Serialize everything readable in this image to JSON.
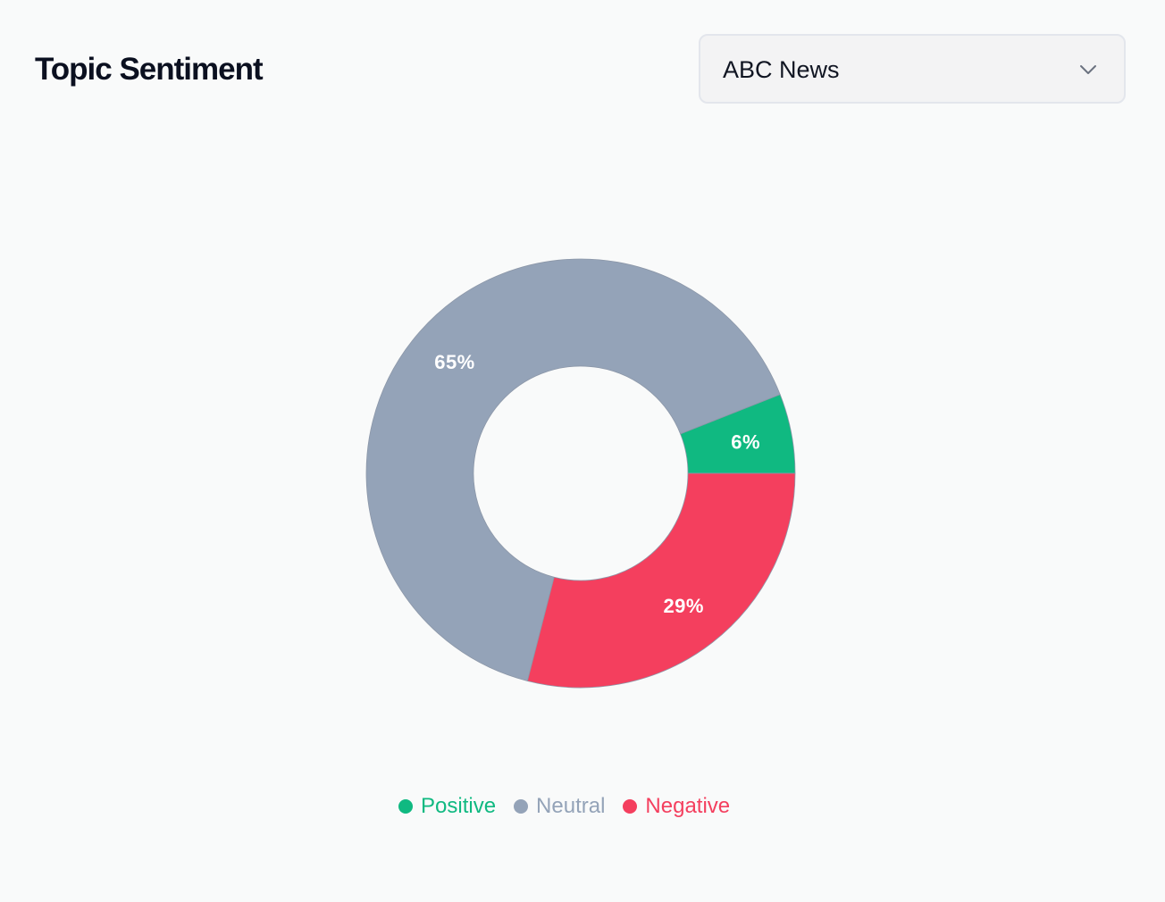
{
  "header": {
    "title": "Topic Sentiment"
  },
  "source_select": {
    "selected": "ABC News",
    "icon": "chevron-down-icon"
  },
  "chart_data": {
    "type": "pie",
    "variant": "donut",
    "title": "",
    "legend_position": "bottom-center",
    "slices": [
      {
        "name": "Positive",
        "value": 6,
        "label": "6%",
        "color": "#10b981"
      },
      {
        "name": "Negative",
        "value": 29,
        "label": "29%",
        "color": "#f43f5e"
      },
      {
        "name": "Neutral",
        "value": 65,
        "label": "65%",
        "color": "#94a3b8"
      }
    ],
    "legend": [
      {
        "name": "Positive",
        "color": "#10b981"
      },
      {
        "name": "Neutral",
        "color": "#94a3b8"
      },
      {
        "name": "Negative",
        "color": "#f43f5e"
      }
    ]
  }
}
